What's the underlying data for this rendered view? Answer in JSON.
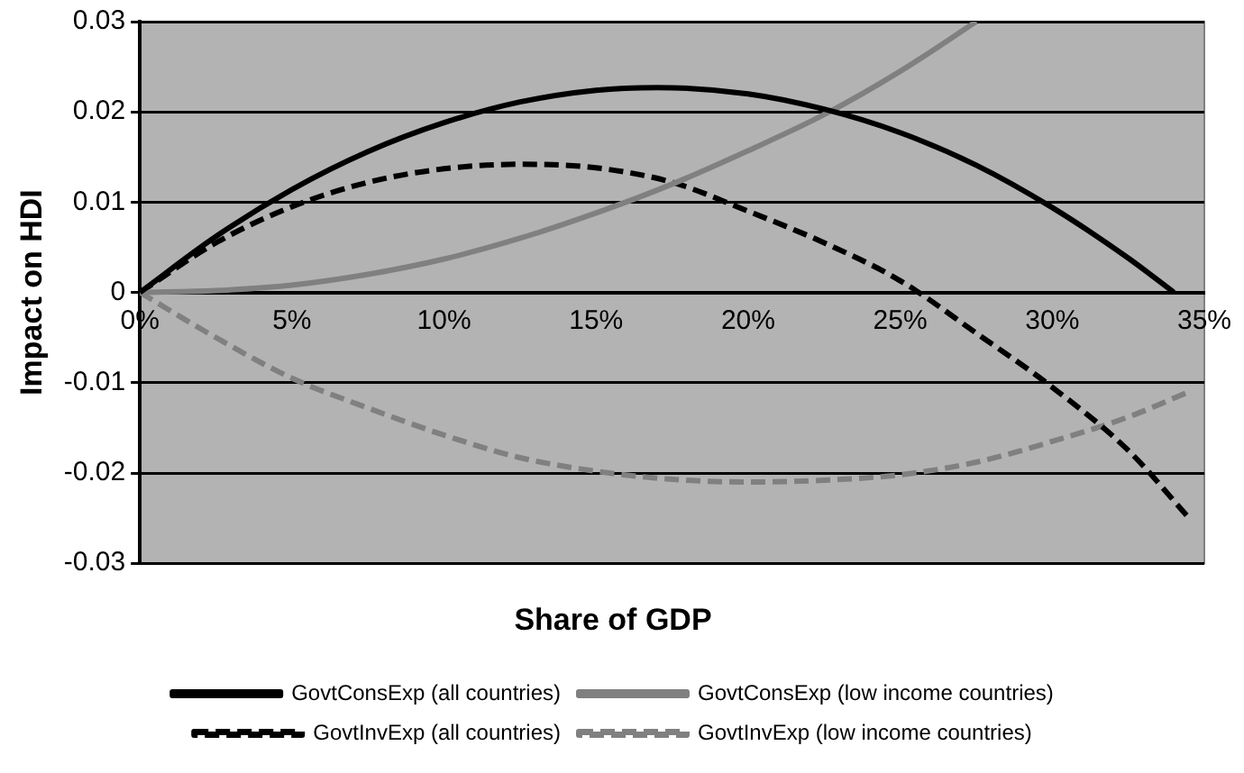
{
  "chart_data": {
    "type": "line",
    "xlabel": "Share of GDP",
    "ylabel": "Impact on HDI",
    "xlim": [
      0,
      35
    ],
    "ylim": [
      -0.03,
      0.03
    ],
    "xticks": [
      {
        "value": 0,
        "label": "0%"
      },
      {
        "value": 5,
        "label": "5%"
      },
      {
        "value": 10,
        "label": "10%"
      },
      {
        "value": 15,
        "label": "15%"
      },
      {
        "value": 20,
        "label": "20%"
      },
      {
        "value": 25,
        "label": "25%"
      },
      {
        "value": 30,
        "label": "30%"
      },
      {
        "value": 35,
        "label": "35%"
      }
    ],
    "yticks": [
      -0.03,
      -0.02,
      -0.01,
      0,
      0.01,
      0.02,
      0.03
    ],
    "grid": "y",
    "legend": "bottom",
    "marker": "none",
    "series": [
      {
        "name": "GovtConsExp (all countries)",
        "color": "#000000",
        "line_style": "solid",
        "x": [
          0,
          2.5,
          5,
          7.5,
          10,
          12.5,
          15,
          17,
          20,
          22.5,
          25,
          27.5,
          30,
          32.5,
          34
        ],
        "values": [
          0,
          0.0062,
          0.0114,
          0.0156,
          0.0188,
          0.0211,
          0.0224,
          0.0227,
          0.022,
          0.0203,
          0.0177,
          0.0141,
          0.0094,
          0.0038,
          0
        ]
      },
      {
        "name": "GovtConsExp (low income countries)",
        "color": "#808080",
        "line_style": "solid",
        "x": [
          0,
          2.5,
          5,
          7.5,
          10,
          12.5,
          15,
          17.5,
          20,
          22.5,
          25,
          27.5
        ],
        "values": [
          0,
          0.0002,
          0.0008,
          0.002,
          0.0037,
          0.006,
          0.0088,
          0.012,
          0.0157,
          0.0197,
          0.0245,
          0.03
        ]
      },
      {
        "name": "GovtInvExp (all countries)",
        "color": "#000000",
        "line_style": "dashed",
        "x": [
          0,
          2.5,
          5,
          7.5,
          10,
          12.5,
          15,
          17.5,
          20,
          22.5,
          25,
          27.5,
          30,
          32.5,
          34.5
        ],
        "values": [
          0,
          0.0055,
          0.0095,
          0.0122,
          0.0137,
          0.0142,
          0.0138,
          0.0122,
          0.009,
          0.0055,
          0.0013,
          -0.0045,
          -0.0105,
          -0.0175,
          -0.025
        ]
      },
      {
        "name": "GovtInvExp (low income countries)",
        "color": "#808080",
        "line_style": "dashed",
        "x": [
          0,
          2.5,
          5,
          7.5,
          10,
          12.5,
          15,
          17.5,
          20,
          22.5,
          25,
          27.5,
          30,
          32.5,
          34.5
        ],
        "values": [
          0,
          -0.005,
          -0.0095,
          -0.0128,
          -0.0158,
          -0.0183,
          -0.0198,
          -0.0207,
          -0.021,
          -0.0208,
          -0.0202,
          -0.0188,
          -0.0165,
          -0.0138,
          -0.011
        ]
      }
    ]
  }
}
